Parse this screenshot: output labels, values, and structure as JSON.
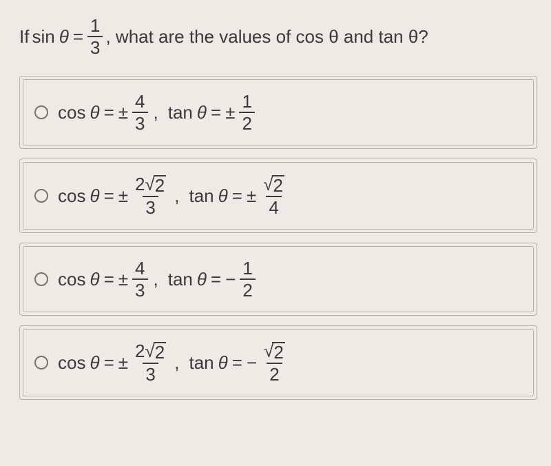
{
  "question": {
    "pre": "If",
    "func": "sin",
    "var": "θ",
    "eq": "=",
    "frac_num": "1",
    "frac_den": "3",
    "post": ", what are the values of cos θ and tan θ?",
    "text_color": "#3b3a39",
    "fontsize": 26
  },
  "background_color": "#ede9e5",
  "border_color": "#b5afa9",
  "options": [
    {
      "cos": {
        "sign": "±",
        "num_plain": "4",
        "den": "3"
      },
      "tan": {
        "sign": "±",
        "num_plain": "1",
        "den": "2"
      }
    },
    {
      "cos": {
        "sign": "±",
        "num_coeff": "2",
        "num_sqrt": "2",
        "den": "3"
      },
      "tan": {
        "sign": "±",
        "num_sqrt": "2",
        "den": "4"
      }
    },
    {
      "cos": {
        "sign": "±",
        "num_plain": "4",
        "den": "3"
      },
      "tan": {
        "sign": "−",
        "num_plain": "1",
        "den": "2"
      }
    },
    {
      "cos": {
        "sign": "±",
        "num_coeff": "2",
        "num_sqrt": "2",
        "den": "3"
      },
      "tan": {
        "sign": "−",
        "num_sqrt": "2",
        "den": "2"
      }
    }
  ],
  "labels": {
    "cos": "cos",
    "tan": "tan",
    "theta": "θ",
    "eq": "="
  }
}
